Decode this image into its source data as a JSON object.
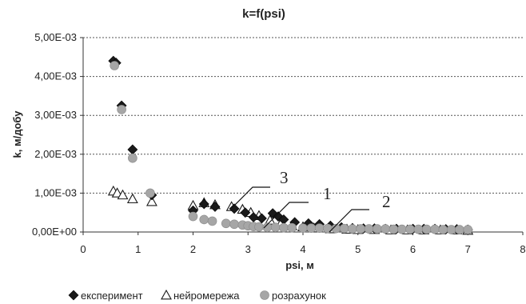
{
  "chart_data": {
    "type": "scatter",
    "title": "k=f(psi)",
    "xlabel": "psi, м",
    "ylabel": "k, м/добу",
    "xlim": [
      0,
      8
    ],
    "ylim": [
      0,
      0.005
    ],
    "x_ticks": [
      "0",
      "1",
      "2",
      "3",
      "4",
      "5",
      "6",
      "7",
      "8"
    ],
    "y_ticks": [
      "0,00E+00",
      "1,00E-03",
      "2,00E-03",
      "3,00E-03",
      "4,00E-03",
      "5,00E-03"
    ],
    "grid": "horizontal dotted",
    "legend_position": "bottom-left",
    "annotations": [
      "3",
      "1",
      "2"
    ],
    "series": [
      {
        "name": "експеримент",
        "marker": "diamond",
        "color": "#1a1a1a",
        "points": [
          [
            0.55,
            0.0044
          ],
          [
            0.6,
            0.00435
          ],
          [
            0.7,
            0.00325
          ],
          [
            0.9,
            0.00212
          ],
          [
            1.25,
            0.00095
          ],
          [
            2.0,
            0.00055
          ],
          [
            2.2,
            0.00072
          ],
          [
            2.4,
            0.00065
          ],
          [
            2.75,
            0.0006
          ],
          [
            2.95,
            0.0005
          ],
          [
            3.1,
            0.00038
          ],
          [
            3.25,
            0.00035
          ],
          [
            3.45,
            0.00048
          ],
          [
            3.55,
            0.0004
          ],
          [
            3.65,
            0.00032
          ],
          [
            3.85,
            0.00025
          ],
          [
            4.1,
            0.00022
          ],
          [
            4.3,
            0.0002
          ],
          [
            4.5,
            0.00016
          ],
          [
            4.7,
            0.00012
          ],
          [
            4.9,
            0.0001
          ],
          [
            5.1,
            9e-05
          ],
          [
            5.3,
            9e-05
          ],
          [
            5.5,
            8e-05
          ],
          [
            5.7,
            8e-05
          ],
          [
            6.0,
            8e-05
          ],
          [
            6.2,
            8e-05
          ],
          [
            6.4,
            8e-05
          ],
          [
            6.6,
            7e-05
          ],
          [
            6.8,
            7e-05
          ],
          [
            7.0,
            6e-05
          ]
        ]
      },
      {
        "name": "нейромережа",
        "marker": "triangle-open",
        "color": "#1a1a1a",
        "points": [
          [
            0.55,
            0.00105
          ],
          [
            0.62,
            0.001
          ],
          [
            0.72,
            0.00095
          ],
          [
            0.9,
            0.00085
          ],
          [
            1.25,
            0.00078
          ],
          [
            2.0,
            0.00068
          ],
          [
            2.2,
            0.00075
          ],
          [
            2.4,
            0.0007
          ],
          [
            2.7,
            0.00065
          ],
          [
            2.9,
            0.00058
          ],
          [
            3.05,
            0.0005
          ],
          [
            3.2,
            0.00042
          ],
          [
            3.4,
            0.0003
          ],
          [
            3.6,
            0.00022
          ],
          [
            3.8,
            0.00016
          ],
          [
            4.0,
            0.00013
          ],
          [
            4.2,
            0.0001
          ],
          [
            4.5,
            8e-05
          ],
          [
            4.8,
            7e-05
          ],
          [
            5.0,
            6e-05
          ],
          [
            5.3,
            6e-05
          ],
          [
            5.6,
            5e-05
          ],
          [
            5.9,
            5e-05
          ],
          [
            6.2,
            5e-05
          ],
          [
            6.5,
            5e-05
          ],
          [
            6.8,
            5e-05
          ],
          [
            7.0,
            4e-05
          ]
        ]
      },
      {
        "name": "розрахунок",
        "marker": "circle",
        "color": "#a6a6a6",
        "points": [
          [
            0.57,
            0.00428
          ],
          [
            0.7,
            0.00315
          ],
          [
            0.9,
            0.0019
          ],
          [
            1.22,
            0.001
          ],
          [
            2.0,
            0.0004
          ],
          [
            2.2,
            0.00032
          ],
          [
            2.35,
            0.00028
          ],
          [
            2.6,
            0.00022
          ],
          [
            2.75,
            0.0002
          ],
          [
            2.9,
            0.00018
          ],
          [
            3.0,
            0.00016
          ],
          [
            3.1,
            0.00014
          ],
          [
            3.2,
            0.00013
          ],
          [
            3.35,
            0.00012
          ],
          [
            3.5,
            0.00012
          ],
          [
            3.65,
            0.00011
          ],
          [
            3.8,
            0.00011
          ],
          [
            4.0,
            0.0001
          ],
          [
            4.15,
            0.0001
          ],
          [
            4.3,
            0.0001
          ],
          [
            4.45,
            9e-05
          ],
          [
            4.6,
            9e-05
          ],
          [
            4.75,
            9e-05
          ],
          [
            4.9,
            8e-05
          ],
          [
            5.05,
            8e-05
          ],
          [
            5.2,
            8e-05
          ],
          [
            5.35,
            8e-05
          ],
          [
            5.5,
            8e-05
          ],
          [
            5.65,
            7e-05
          ],
          [
            5.8,
            7e-05
          ],
          [
            5.95,
            7e-05
          ],
          [
            6.1,
            7e-05
          ],
          [
            6.25,
            7e-05
          ],
          [
            6.4,
            7e-05
          ],
          [
            6.55,
            6e-05
          ],
          [
            6.7,
            6e-05
          ],
          [
            6.85,
            6e-05
          ],
          [
            7.0,
            6e-05
          ]
        ]
      }
    ]
  }
}
